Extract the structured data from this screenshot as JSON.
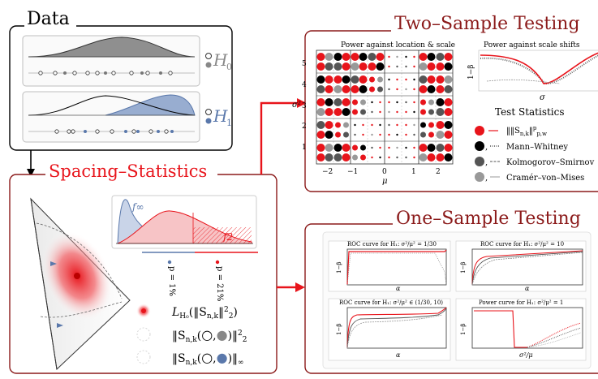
{
  "data_panel": {
    "title": "Data",
    "h0_label": "℘₀",
    "h0_text": "H",
    "h0_sub": "0",
    "h1_text": "H",
    "h1_sub": "1"
  },
  "spacing_panel": {
    "title": "Spacing–Statistics",
    "f_inf": "f∞",
    "f_2": "f2",
    "p1": "p = 1%",
    "p2": "p = 21%",
    "stat1": "L",
    "stat1_rest": "(‖S",
    "stat2": "‖S",
    "stat3": "‖S"
  },
  "two_sample": {
    "title": "Two–Sample Testing",
    "grid_title": "Power against location & scale",
    "curve_title": "Power against scale shifts",
    "y_ticks": [
      "5",
      "4",
      "3",
      "2",
      "1"
    ],
    "x_ticks": [
      "−2",
      "−1",
      "0",
      "1",
      "2"
    ],
    "x_label": "μ",
    "y_label": "σ²",
    "curve_xlabel": "σ",
    "curve_ylabel": "1−β",
    "legend_title": "Test Statistics",
    "legend": [
      "‖S",
      "Mann–Whitney",
      "Kolmogorov–Smirnov",
      "Cramér–von–Mises"
    ],
    "legend_first_rest": "‖",
    "colors": [
      "#e8141b",
      "#000000",
      "#555555",
      "#999999"
    ]
  },
  "one_sample": {
    "title": "One–Sample Testing",
    "p1_title": "ROC curve for H₁: σ²/μ² = 1/30",
    "p2_title": "ROC curve for H₁: σ²/μ² = 10",
    "p3_title": "ROC curve for H₁: σ²/μ² ∈ (1/30, 10)",
    "p4_title": "Power curve for H₁: σ²/μ² = 1",
    "ylabel": "1−β",
    "xlabel_alpha": "α",
    "xlabel_ratio": "σ²/μ"
  }
}
